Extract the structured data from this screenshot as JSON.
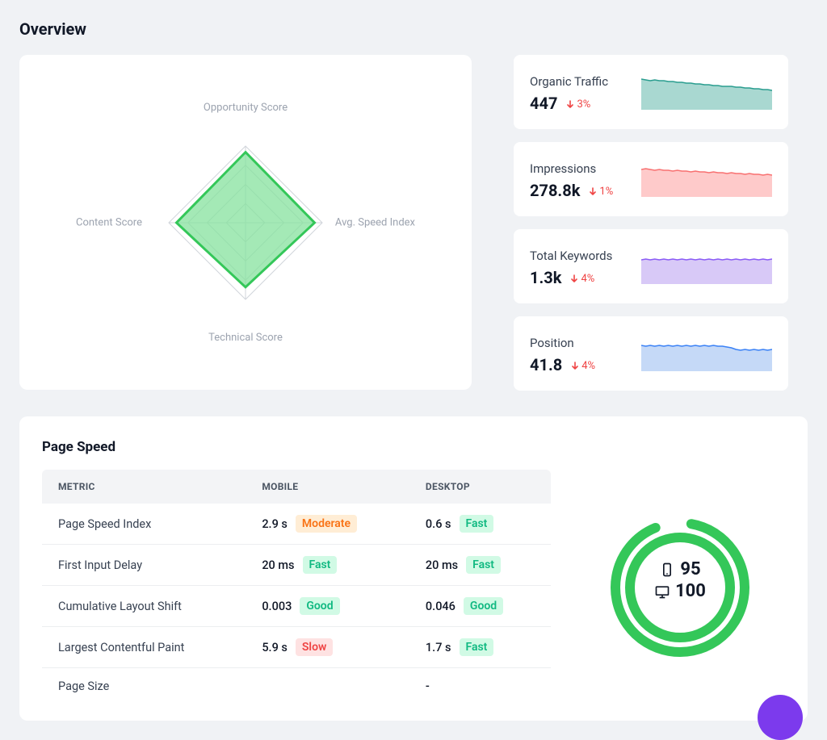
{
  "overview": {
    "title": "Overview",
    "radar": {
      "labels": [
        "Opportunity Score",
        "Avg. Speed Index",
        "Technical Score",
        "Content Score"
      ],
      "values": [
        0.92,
        0.9,
        0.84,
        0.9
      ],
      "rings": [
        1.0,
        0.75,
        0.5,
        0.25
      ],
      "grid_color": "#d1d5db",
      "fill_color": "#86e29d",
      "stroke_color": "#34c759",
      "label_color": "#9ca3af",
      "label_fontsize": 13
    },
    "metrics": [
      {
        "title": "Organic Traffic",
        "value": "447",
        "delta": "3%",
        "delta_dir": "down",
        "delta_color": "#ef4444",
        "spark": {
          "stroke": "#2a9d8f",
          "fill": "#a9d8d1",
          "data": [
            38,
            37,
            36,
            37,
            36,
            36,
            35,
            35,
            34,
            34,
            33,
            33,
            32,
            32,
            31,
            31,
            30,
            30,
            29,
            29,
            29,
            28,
            28,
            27,
            27,
            26,
            26,
            25,
            25,
            24
          ],
          "ymax": 40
        }
      },
      {
        "title": "Impressions",
        "value": "278.8k",
        "delta": "1%",
        "delta_dir": "down",
        "delta_color": "#ef4444",
        "spark": {
          "stroke": "#f87171",
          "fill": "#fecaca",
          "data": [
            34,
            35,
            34,
            33,
            34,
            33,
            33,
            32,
            33,
            32,
            32,
            31,
            32,
            31,
            31,
            30,
            31,
            30,
            30,
            29,
            30,
            29,
            29,
            28,
            29,
            28,
            28,
            27,
            28,
            27
          ],
          "ymax": 40
        }
      },
      {
        "title": "Total Keywords",
        "value": "1.3k",
        "delta": "4%",
        "delta_dir": "down",
        "delta_color": "#ef4444",
        "spark": {
          "stroke": "#8b5cf6",
          "fill": "#d8c9f7",
          "data": [
            30,
            31,
            30,
            31,
            30,
            31,
            30,
            31,
            30,
            31,
            30,
            31,
            30,
            31,
            30,
            31,
            30,
            31,
            30,
            31,
            30,
            31,
            30,
            31,
            30,
            31,
            30,
            31,
            30,
            31
          ],
          "ymax": 40
        }
      },
      {
        "title": "Position",
        "value": "41.8",
        "delta": "4%",
        "delta_dir": "down",
        "delta_color": "#ef4444",
        "spark": {
          "stroke": "#3b82f6",
          "fill": "#c5d9f7",
          "data": [
            32,
            31,
            32,
            31,
            32,
            31,
            32,
            31,
            32,
            31,
            32,
            31,
            32,
            31,
            32,
            31,
            32,
            31,
            31,
            30,
            29,
            27,
            26,
            27,
            26,
            27,
            26,
            27,
            26,
            27
          ],
          "ymax": 40
        }
      }
    ]
  },
  "page_speed": {
    "title": "Page Speed",
    "columns": [
      "METRIC",
      "MOBILE",
      "DESKTOP"
    ],
    "rows": [
      {
        "metric": "Page Speed Index",
        "mobile": {
          "val": "2.9 s",
          "badge": "Moderate",
          "badge_bg": "#ffedd5",
          "badge_fg": "#f97316"
        },
        "desktop": {
          "val": "0.6 s",
          "badge": "Fast",
          "badge_bg": "#d1fae5",
          "badge_fg": "#10b981"
        }
      },
      {
        "metric": "First Input Delay",
        "mobile": {
          "val": "20 ms",
          "badge": "Fast",
          "badge_bg": "#d1fae5",
          "badge_fg": "#10b981"
        },
        "desktop": {
          "val": "20 ms",
          "badge": "Fast",
          "badge_bg": "#d1fae5",
          "badge_fg": "#10b981"
        }
      },
      {
        "metric": "Cumulative Layout Shift",
        "mobile": {
          "val": "0.003",
          "badge": "Good",
          "badge_bg": "#d1fae5",
          "badge_fg": "#10b981"
        },
        "desktop": {
          "val": "0.046",
          "badge": "Good",
          "badge_bg": "#d1fae5",
          "badge_fg": "#10b981"
        }
      },
      {
        "metric": "Largest Contentful Paint",
        "mobile": {
          "val": "5.9 s",
          "badge": "Slow",
          "badge_bg": "#fee2e2",
          "badge_fg": "#ef4444"
        },
        "desktop": {
          "val": "1.7 s",
          "badge": "Fast",
          "badge_bg": "#d1fae5",
          "badge_fg": "#10b981"
        }
      },
      {
        "metric": "Page Size",
        "mobile": {
          "val": "",
          "badge": "",
          "badge_bg": "",
          "badge_fg": ""
        },
        "desktop": {
          "val": "-",
          "badge": "",
          "badge_bg": "",
          "badge_fg": ""
        }
      }
    ],
    "gauge": {
      "mobile": 95,
      "desktop": 100,
      "color": "#34c759",
      "track_color": "#ffffff",
      "mobile_icon": "mobile",
      "desktop_icon": "desktop"
    }
  }
}
